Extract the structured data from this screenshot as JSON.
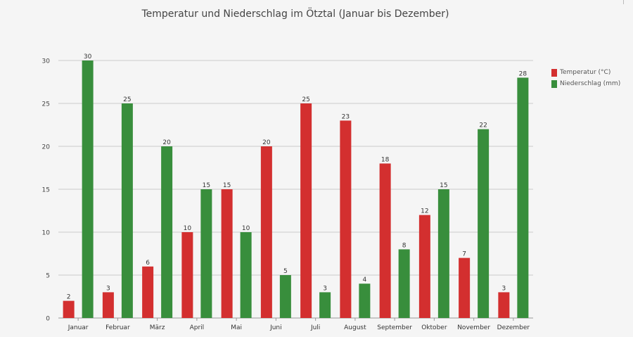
{
  "chart_data": {
    "type": "bar",
    "title": "Temperatur und Niederschlag im Ötztal (Januar bis Dezember)",
    "categories": [
      "Januar",
      "Februar",
      "März",
      "April",
      "Mai",
      "Juni",
      "Juli",
      "August",
      "September",
      "Oktober",
      "November",
      "Dezember"
    ],
    "series": [
      {
        "name": "Temperatur (°C)",
        "color": "#d32f2f",
        "values": [
          2,
          3,
          6,
          10,
          15,
          20,
          25,
          23,
          18,
          12,
          7,
          3
        ]
      },
      {
        "name": "Niederschlag (mm)",
        "color": "#388e3c",
        "values": [
          30,
          25,
          20,
          15,
          10,
          5,
          3,
          4,
          8,
          15,
          22,
          28
        ]
      }
    ],
    "xlabel": "",
    "ylabel": "",
    "ylim": [
      0,
      30
    ],
    "yticks": [
      0,
      5,
      10,
      15,
      20,
      25,
      30
    ],
    "grid": true,
    "legend": "top-right",
    "data_labels": true,
    "gridline_color": "#cccccc",
    "axis_color": "#999999"
  }
}
